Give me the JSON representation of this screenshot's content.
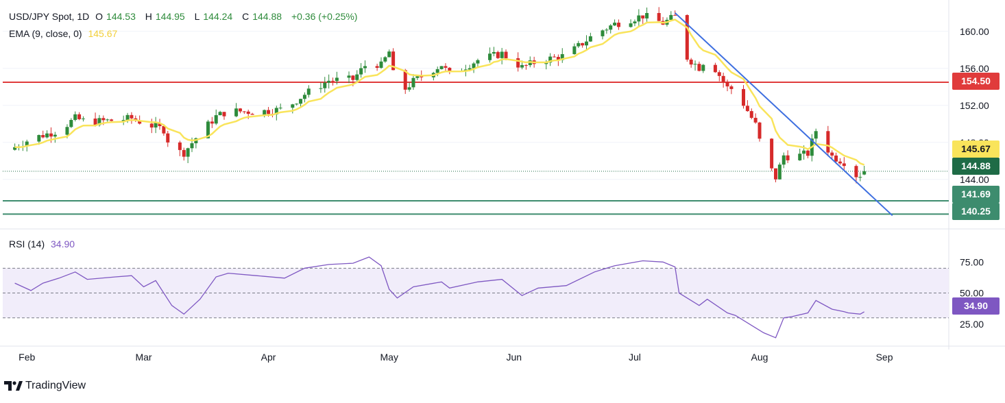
{
  "header": {
    "symbol": "USD/JPY Spot, 1D",
    "o_label": "O",
    "open": "144.53",
    "h_label": "H",
    "high": "144.95",
    "l_label": "L",
    "low": "144.24",
    "c_label": "C",
    "close": "144.88",
    "change": "+0.36 (+0.25%)",
    "ema_label": "EMA (9, close, 0)",
    "ema_value": "145.67",
    "rsi_label": "RSI (14)",
    "rsi_value": "34.90"
  },
  "price_labels": {
    "resistance": "154.50",
    "ema": "145.67",
    "last": "144.88",
    "support1": "141.69",
    "support2": "140.25",
    "rsi": "34.90"
  },
  "footer": {
    "brand": "TradingView"
  },
  "colors": {
    "up": "#2e8b3b",
    "down": "#d62a2a",
    "ema": "#f9e45b",
    "resistance": "#e03b3b",
    "support": "#3d8c6e",
    "trendline": "#3e6fe0",
    "rsi": "#7e57c2",
    "rsi_band": "#f1edfa",
    "ema_label_bg": "#f9e45b",
    "last_label_bg": "#1e6b46"
  },
  "chart_data": [
    {
      "type": "candlestick",
      "title": "USD/JPY Spot, 1D",
      "x_ticks": [
        "Feb",
        "Mar",
        "Apr",
        "May",
        "Jun",
        "Jul",
        "Aug",
        "Sep"
      ],
      "y_ticks": [
        "160.00",
        "156.00",
        "152.00",
        "148.00",
        "144.00"
      ],
      "ylim": [
        138.8,
        162.8
      ],
      "hlines": [
        {
          "value": 154.5,
          "label": "154.50",
          "kind": "resistance"
        },
        {
          "value": 141.69,
          "label": "141.69",
          "kind": "support"
        },
        {
          "value": 140.25,
          "label": "140.25",
          "kind": "support"
        }
      ],
      "trendline": {
        "start": [
          "Jul-11",
          162.0
        ],
        "end": [
          "Sep-03",
          140.1
        ]
      },
      "ema_label": "EMA (9, close, 0)",
      "ema_last": 145.67,
      "last_close": 144.88,
      "close_path": [
        [
          "Jan-29",
          147.5
        ],
        [
          "Feb-02",
          148.4
        ],
        [
          "Feb-09",
          149.3
        ],
        [
          "Feb-13",
          150.6
        ],
        [
          "Feb-16",
          150.2
        ],
        [
          "Feb-23",
          150.4
        ],
        [
          "Feb-27",
          150.6
        ],
        [
          "Mar-01",
          150.1
        ],
        [
          "Mar-06",
          149.4
        ],
        [
          "Mar-08",
          147.1
        ],
        [
          "Mar-11",
          146.9
        ],
        [
          "Mar-15",
          149.0
        ],
        [
          "Mar-19",
          150.8
        ],
        [
          "Mar-22",
          151.4
        ],
        [
          "Mar-29",
          151.3
        ],
        [
          "Apr-05",
          151.6
        ],
        [
          "Apr-10",
          153.2
        ],
        [
          "Apr-16",
          154.7
        ],
        [
          "Apr-22",
          154.8
        ],
        [
          "Apr-26",
          156.8
        ],
        [
          "Apr-29",
          156.3
        ],
        [
          "May-01",
          157.8
        ],
        [
          "May-03",
          153.0
        ],
        [
          "May-07",
          154.6
        ],
        [
          "May-14",
          156.4
        ],
        [
          "May-16",
          155.3
        ],
        [
          "May-23",
          156.9
        ],
        [
          "May-29",
          157.6
        ],
        [
          "Jun-03",
          156.1
        ],
        [
          "Jun-07",
          156.8
        ],
        [
          "Jun-14",
          157.4
        ],
        [
          "Jun-21",
          159.7
        ],
        [
          "Jun-26",
          160.8
        ],
        [
          "Jul-03",
          161.7
        ],
        [
          "Jul-08",
          160.9
        ],
        [
          "Jul-11",
          161.6
        ],
        [
          "Jul-12",
          157.9
        ],
        [
          "Jul-17",
          156.1
        ],
        [
          "Jul-19",
          157.3
        ],
        [
          "Jul-24",
          153.9
        ],
        [
          "Jul-26",
          153.7
        ],
        [
          "Jul-31",
          149.9
        ],
        [
          "Aug-02",
          146.5
        ],
        [
          "Aug-05",
          144.2
        ],
        [
          "Aug-07",
          146.6
        ],
        [
          "Aug-09",
          146.4
        ],
        [
          "Aug-13",
          146.8
        ],
        [
          "Aug-15",
          149.3
        ],
        [
          "Aug-19",
          146.5
        ],
        [
          "Aug-22",
          145.9
        ],
        [
          "Aug-23",
          144.4
        ],
        [
          "Aug-26",
          144.5
        ],
        [
          "Aug-27",
          144.88
        ]
      ]
    },
    {
      "type": "line",
      "title": "RSI (14)",
      "series": [
        {
          "name": "RSI (14)",
          "last": 34.9
        }
      ],
      "y_ticks": [
        "75.00",
        "50.00",
        "25.00"
      ],
      "ylim": [
        10,
        100
      ],
      "band": [
        30,
        70
      ],
      "midline": 50,
      "values_path": [
        [
          "Jan-29",
          58
        ],
        [
          "Feb-02",
          52
        ],
        [
          "Feb-05",
          58
        ],
        [
          "Feb-09",
          62
        ],
        [
          "Feb-13",
          67
        ],
        [
          "Feb-16",
          61
        ],
        [
          "Feb-23",
          63
        ],
        [
          "Feb-27",
          64
        ],
        [
          "Mar-01",
          55
        ],
        [
          "Mar-04",
          60
        ],
        [
          "Mar-08",
          40
        ],
        [
          "Mar-11",
          33
        ],
        [
          "Mar-15",
          45
        ],
        [
          "Mar-19",
          63
        ],
        [
          "Mar-22",
          66
        ],
        [
          "Mar-29",
          64
        ],
        [
          "Apr-05",
          62
        ],
        [
          "Apr-10",
          70
        ],
        [
          "Apr-16",
          73
        ],
        [
          "Apr-22",
          74
        ],
        [
          "Apr-26",
          79
        ],
        [
          "Apr-29",
          72
        ],
        [
          "May-01",
          53
        ],
        [
          "May-03",
          46
        ],
        [
          "May-07",
          55
        ],
        [
          "May-14",
          59
        ],
        [
          "May-16",
          54
        ],
        [
          "May-23",
          59
        ],
        [
          "May-29",
          61
        ],
        [
          "Jun-03",
          48
        ],
        [
          "Jun-07",
          54
        ],
        [
          "Jun-14",
          56
        ],
        [
          "Jun-21",
          67
        ],
        [
          "Jun-26",
          72
        ],
        [
          "Jul-03",
          76
        ],
        [
          "Jul-08",
          75
        ],
        [
          "Jul-11",
          71
        ],
        [
          "Jul-12",
          50
        ],
        [
          "Jul-17",
          40
        ],
        [
          "Jul-19",
          45
        ],
        [
          "Jul-24",
          34
        ],
        [
          "Jul-26",
          32
        ],
        [
          "Jul-31",
          22
        ],
        [
          "Aug-02",
          18
        ],
        [
          "Aug-05",
          14
        ],
        [
          "Aug-07",
          30
        ],
        [
          "Aug-09",
          31
        ],
        [
          "Aug-13",
          34
        ],
        [
          "Aug-15",
          44
        ],
        [
          "Aug-19",
          37
        ],
        [
          "Aug-22",
          35
        ],
        [
          "Aug-23",
          34
        ],
        [
          "Aug-26",
          33
        ],
        [
          "Aug-27",
          34.9
        ]
      ]
    }
  ]
}
